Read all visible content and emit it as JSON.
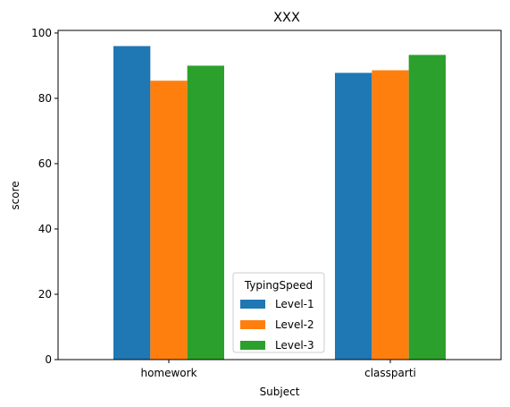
{
  "chart_data": {
    "type": "bar",
    "title": "XXX",
    "xlabel": "Subject",
    "ylabel": "score",
    "categories": [
      "homework",
      "classparti"
    ],
    "series": [
      {
        "name": "Level-1",
        "values": [
          96.0,
          87.8
        ],
        "color": "#1f77b4"
      },
      {
        "name": "Level-2",
        "values": [
          85.4,
          88.6
        ],
        "color": "#ff7f0e"
      },
      {
        "name": "Level-3",
        "values": [
          90.0,
          93.3
        ],
        "color": "#2ca02c"
      }
    ],
    "ylim": [
      0,
      100.8
    ],
    "yticks": [
      0,
      20,
      40,
      60,
      80,
      100
    ],
    "grid": false,
    "legend": {
      "title": "TypingSpeed",
      "placement": "bottom-center"
    }
  }
}
